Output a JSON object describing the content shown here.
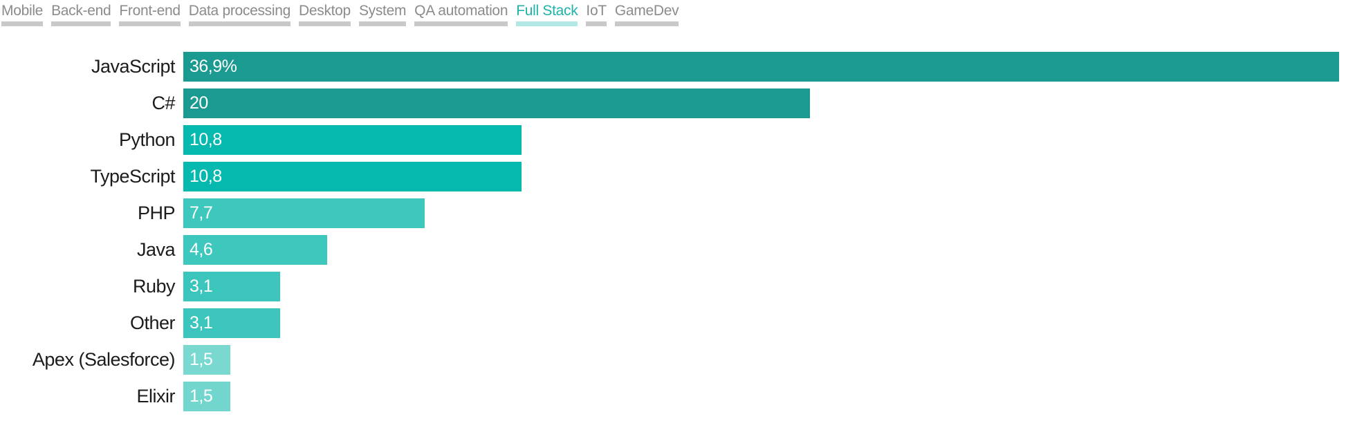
{
  "tabs": {
    "items": [
      {
        "label": "Mobile",
        "active": false
      },
      {
        "label": "Back-end",
        "active": false
      },
      {
        "label": "Front-end",
        "active": false
      },
      {
        "label": "Data processing",
        "active": false
      },
      {
        "label": "Desktop",
        "active": false
      },
      {
        "label": "System",
        "active": false
      },
      {
        "label": "QA automation",
        "active": false
      },
      {
        "label": "Full Stack",
        "active": true
      },
      {
        "label": "IoT",
        "active": false
      },
      {
        "label": "GameDev",
        "active": false
      }
    ]
  },
  "colors": {
    "active_tab_text": "#1eb2a9",
    "active_tab_underline": "#b2e9e4",
    "inactive_tab_text": "#8b8b8b",
    "inactive_tab_underline": "#c9c9c9",
    "label_text": "#1b1b1b",
    "bar_value_text": "#ffffff"
  },
  "chart_data": {
    "type": "bar",
    "orientation": "horizontal",
    "title": "",
    "xlabel": "",
    "ylabel": "",
    "xlim": [
      0,
      36.9
    ],
    "grid": false,
    "legend": false,
    "categories": [
      "JavaScript",
      "C#",
      "Python",
      "TypeScript",
      "PHP",
      "Java",
      "Ruby",
      "Other",
      "Apex (Salesforce)",
      "Elixir"
    ],
    "values": [
      36.9,
      20,
      10.8,
      10.8,
      7.7,
      4.6,
      3.1,
      3.1,
      1.5,
      1.5
    ],
    "value_labels": [
      "36,9%",
      "20",
      "10,8",
      "10,8",
      "7,7",
      "4,6",
      "3,1",
      "3,1",
      "1,5",
      "1,5"
    ],
    "rows": [
      {
        "label": "JavaScript",
        "value": 36.9,
        "value_label": "36,9%",
        "color": "#1a9a90"
      },
      {
        "label": "C#",
        "value": 20,
        "value_label": "20",
        "color": "#1a9a90"
      },
      {
        "label": "Python",
        "value": 10.8,
        "value_label": "10,8",
        "color": "#06b9ae"
      },
      {
        "label": "TypeScript",
        "value": 10.8,
        "value_label": "10,8",
        "color": "#06b9ae"
      },
      {
        "label": "PHP",
        "value": 7.7,
        "value_label": "7,7",
        "color": "#3ec7bd"
      },
      {
        "label": "Java",
        "value": 4.6,
        "value_label": "4,6",
        "color": "#3ec7bd"
      },
      {
        "label": "Ruby",
        "value": 3.1,
        "value_label": "3,1",
        "color": "#3cc5bc"
      },
      {
        "label": "Other",
        "value": 3.1,
        "value_label": "3,1",
        "color": "#3cc5bc"
      },
      {
        "label": "Apex (Salesforce)",
        "value": 1.5,
        "value_label": "1,5",
        "color": "#79d8d0"
      },
      {
        "label": "Elixir",
        "value": 1.5,
        "value_label": "1,5",
        "color": "#73d6ce"
      }
    ]
  }
}
